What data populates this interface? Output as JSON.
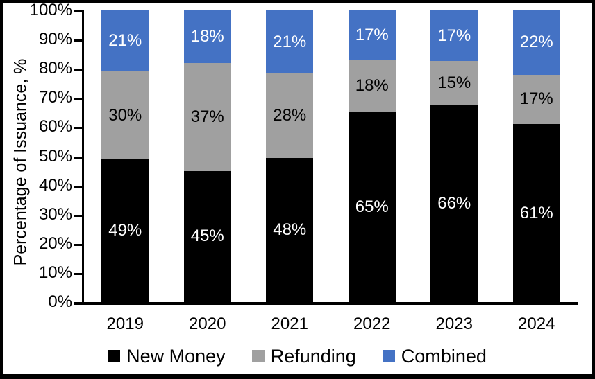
{
  "frame": {
    "background": "#ffffff",
    "border_color": "#000000"
  },
  "chart_data": {
    "type": "bar",
    "stacked": true,
    "orientation": "vertical",
    "title": "",
    "xlabel": "",
    "ylabel": "Percentage of Issuance, %",
    "ylim": [
      0,
      100
    ],
    "yticks": [
      "0%",
      "10%",
      "20%",
      "30%",
      "40%",
      "50%",
      "60%",
      "70%",
      "80%",
      "90%",
      "100%"
    ],
    "grid": false,
    "legend_position": "bottom",
    "categories": [
      "2019",
      "2020",
      "2021",
      "2022",
      "2023",
      "2024"
    ],
    "series": [
      {
        "name": "New Money",
        "color": "#000000",
        "label_color": "#ffffff",
        "values": [
          49,
          45,
          48,
          65,
          66,
          61
        ],
        "labels": [
          "49%",
          "45%",
          "48%",
          "65%",
          "66%",
          "61%"
        ]
      },
      {
        "name": "Refunding",
        "color": "#a0a0a0",
        "label_color": "#000000",
        "values": [
          30,
          37,
          28,
          18,
          15,
          17
        ],
        "labels": [
          "30%",
          "37%",
          "28%",
          "18%",
          "15%",
          "17%"
        ]
      },
      {
        "name": "Combined",
        "color": "#4472c4",
        "label_color": "#ffffff",
        "values": [
          21,
          18,
          21,
          17,
          17,
          22
        ],
        "labels": [
          "21%",
          "18%",
          "21%",
          "17%",
          "17%",
          "22%"
        ]
      }
    ]
  }
}
